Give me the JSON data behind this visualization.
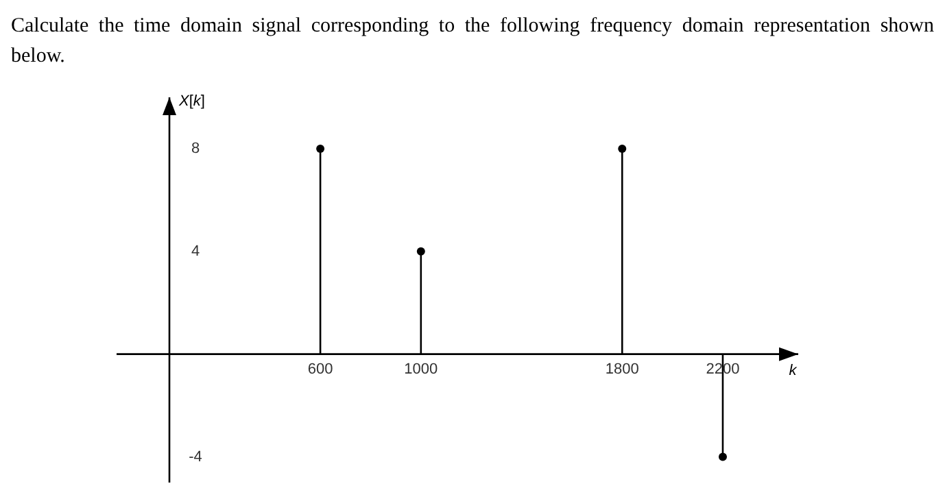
{
  "chart_data": {
    "type": "lollipop",
    "title": "Calculate the time domain signal corresponding to the following frequency domain representation shown below.",
    "xlabel": "k",
    "ylabel": "X[k]",
    "x": [
      600,
      1000,
      1800,
      2200
    ],
    "values": [
      8,
      4,
      8,
      -4
    ],
    "color": "#000000",
    "xlim": [
      -210,
      2500
    ],
    "ylim": [
      -5,
      10
    ],
    "xticks": [
      600,
      1000,
      1800,
      2200
    ],
    "yticks": [
      -4,
      4,
      8
    ],
    "marker": "circle",
    "grid": false
  }
}
